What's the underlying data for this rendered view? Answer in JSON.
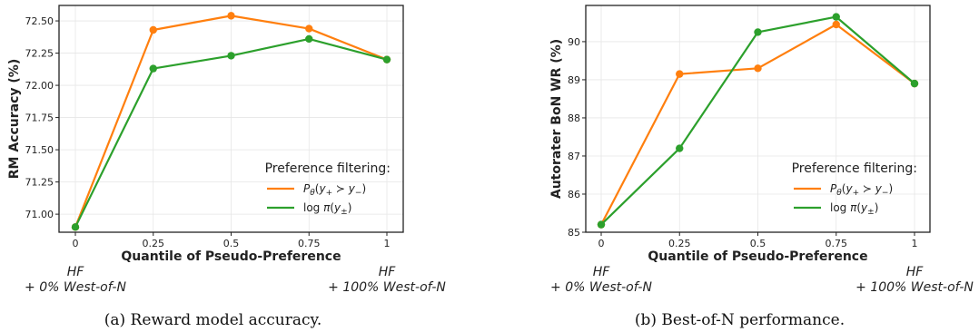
{
  "chart_data": [
    {
      "type": "line",
      "caption": "(a) Reward model accuracy.",
      "xlabel": "Quantile of Pseudo-Preference",
      "ylabel": "RM Accuracy (%)",
      "x": [
        0,
        0.25,
        0.5,
        0.75,
        1
      ],
      "x_tick_labels": [
        "0",
        "0.25",
        "0.5",
        "0.75",
        "1"
      ],
      "ylim": [
        70.86,
        72.62
      ],
      "y_ticks": [
        71.0,
        71.25,
        71.5,
        71.75,
        72.0,
        72.25,
        72.5
      ],
      "y_tick_labels": [
        "71.00",
        "71.25",
        "71.50",
        "71.75",
        "72.00",
        "72.25",
        "72.50"
      ],
      "grid": true,
      "legend_title": "Preference filtering:",
      "legend_placement": "lower-right",
      "annotations": [
        {
          "x": 0,
          "lines": [
            "HF",
            "+ 0% West-of-N"
          ]
        },
        {
          "x": 1,
          "lines": [
            "HF",
            "+ 100% West-of-N"
          ]
        }
      ],
      "series": [
        {
          "name": "P_θ(y₊ ≻ y₋)",
          "color": "#ff7f0e",
          "values": [
            70.9,
            72.43,
            72.54,
            72.44,
            72.2
          ]
        },
        {
          "name": "log π(y±)",
          "color": "#2ca02c",
          "values": [
            70.9,
            72.13,
            72.23,
            72.36,
            72.2
          ]
        }
      ]
    },
    {
      "type": "line",
      "caption": "(b) Best-of-N performance.",
      "xlabel": "Quantile of Pseudo-Preference",
      "ylabel": "Autorater BoN WR (%)",
      "x": [
        0,
        0.25,
        0.5,
        0.75,
        1
      ],
      "x_tick_labels": [
        "0",
        "0.25",
        "0.5",
        "0.75",
        "1"
      ],
      "ylim": [
        85.0,
        90.95
      ],
      "y_ticks": [
        85,
        86,
        87,
        88,
        89,
        90
      ],
      "y_tick_labels": [
        "85",
        "86",
        "87",
        "88",
        "89",
        "90"
      ],
      "grid": true,
      "legend_title": "Preference filtering:",
      "legend_placement": "lower-right",
      "annotations": [
        {
          "x": 0,
          "lines": [
            "HF",
            "+ 0% West-of-N"
          ]
        },
        {
          "x": 1,
          "lines": [
            "HF",
            "+ 100% West-of-N"
          ]
        }
      ],
      "series": [
        {
          "name": "P_θ(y₊ ≻ y₋)",
          "color": "#ff7f0e",
          "values": [
            85.2,
            89.15,
            89.3,
            90.45,
            88.9
          ]
        },
        {
          "name": "log π(y±)",
          "color": "#2ca02c",
          "values": [
            85.2,
            87.2,
            90.25,
            90.65,
            88.9
          ]
        }
      ]
    }
  ]
}
